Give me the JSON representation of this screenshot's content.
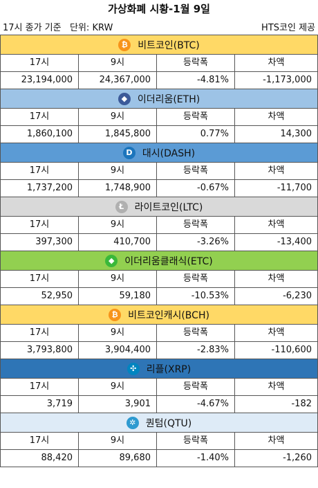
{
  "title": "가상화폐 시황-1월 9일",
  "basis": "17시 종가 기준",
  "unit": "단위: KRW",
  "source": "HTS코인 제공",
  "columns": [
    "17시",
    "9시",
    "등락폭",
    "차액"
  ],
  "coins": [
    {
      "name": "비트코인(BTC)",
      "icon": "bitcoin-icon",
      "glyph": "₿",
      "header_color": "#ffd966",
      "icon_color": "#f7931a",
      "values": [
        "23,194,000",
        "24,367,000",
        "-4.81%",
        "-1,173,000"
      ]
    },
    {
      "name": "이더리움(ETH)",
      "icon": "ethereum-icon",
      "glyph": "◆",
      "header_color": "#9dc3e6",
      "icon_color": "#3c5a99",
      "values": [
        "1,860,100",
        "1,845,800",
        "0.77%",
        "14,300"
      ]
    },
    {
      "name": "대시(DASH)",
      "icon": "dash-icon",
      "glyph": "D",
      "header_color": "#5b9bd5",
      "icon_color": "#1c75bc",
      "values": [
        "1,737,200",
        "1,748,900",
        "-0.67%",
        "-11,700"
      ]
    },
    {
      "name": "라이트코인(LTC)",
      "icon": "litecoin-icon",
      "glyph": "Ł",
      "header_color": "#d9d9d9",
      "icon_color": "#b0b0b0",
      "values": [
        "397,300",
        "410,700",
        "-3.26%",
        "-13,400"
      ]
    },
    {
      "name": "이더리움클래식(ETC)",
      "icon": "ethereum-classic-icon",
      "glyph": "◆",
      "header_color": "#92d050",
      "icon_color": "#3ab83a",
      "values": [
        "52,950",
        "59,180",
        "-10.53%",
        "-6,230"
      ]
    },
    {
      "name": "비트코인캐시(BCH)",
      "icon": "bitcoin-cash-icon",
      "glyph": "₿",
      "header_color": "#ffd966",
      "icon_color": "#f7931a",
      "values": [
        "3,793,800",
        "3,904,400",
        "-2.83%",
        "-110,600"
      ]
    },
    {
      "name": "리플(XRP)",
      "icon": "ripple-icon",
      "glyph": "✣",
      "header_color": "#2e75b6",
      "icon_color": "#0085c0",
      "values": [
        "3,719",
        "3,901",
        "-4.67%",
        "-182"
      ]
    },
    {
      "name": "퀀텀(QTU)",
      "icon": "qtum-icon",
      "glyph": "✲",
      "header_color": "#deebf7",
      "icon_color": "#2e9ad0",
      "values": [
        "88,420",
        "89,680",
        "-1.40%",
        "-1,260"
      ]
    }
  ]
}
